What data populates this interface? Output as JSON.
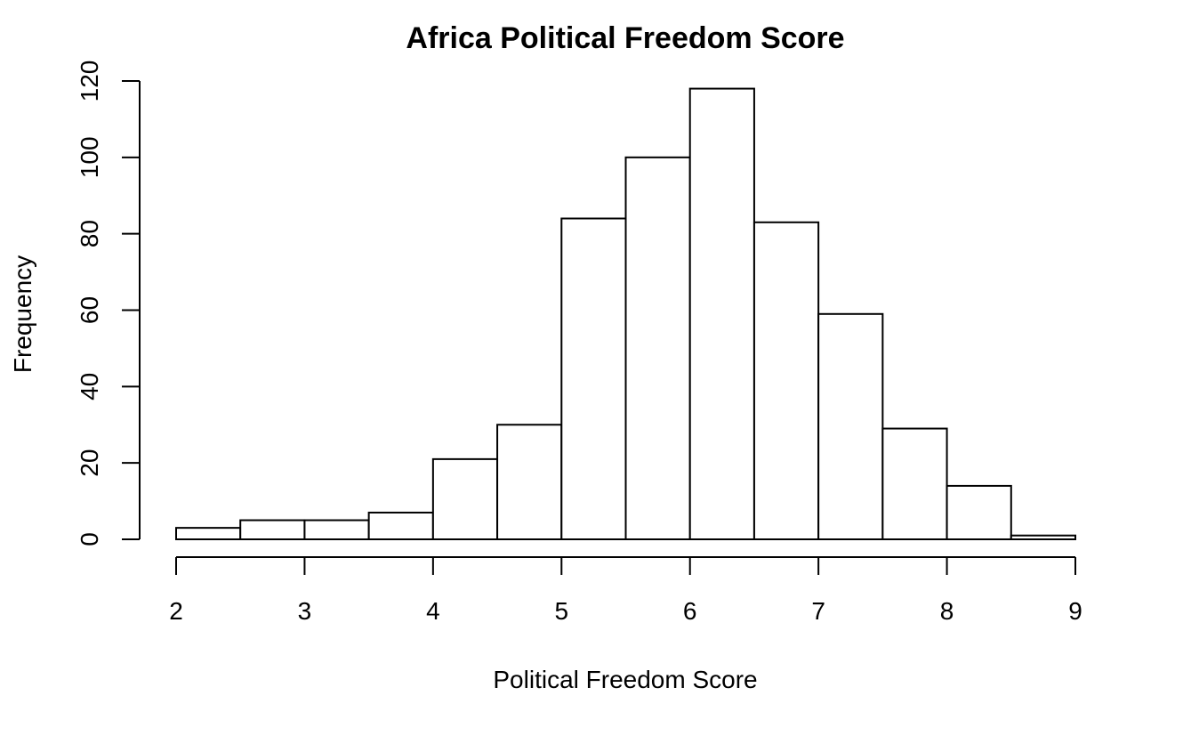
{
  "chart_data": {
    "type": "bar",
    "subtype": "histogram",
    "title": "Africa Political Freedom Score",
    "xlabel": "Political Freedom Score",
    "ylabel": "Frequency",
    "bin_edges": [
      2,
      2.5,
      3,
      3.5,
      4,
      4.5,
      5,
      5.5,
      6,
      6.5,
      7,
      7.5,
      8,
      8.5,
      9
    ],
    "values": [
      3,
      5,
      5,
      7,
      21,
      30,
      84,
      100,
      118,
      83,
      59,
      29,
      14,
      1
    ],
    "xlim": [
      2,
      9
    ],
    "ylim": [
      0,
      120
    ],
    "x_ticks": [
      2,
      3,
      4,
      5,
      6,
      7,
      8,
      9
    ],
    "y_ticks": [
      0,
      20,
      40,
      60,
      80,
      100,
      120
    ],
    "grid": false,
    "colors": {
      "bar_fill": "#ffffff",
      "bar_stroke": "#000000",
      "axis": "#000000",
      "background": "#ffffff"
    }
  }
}
